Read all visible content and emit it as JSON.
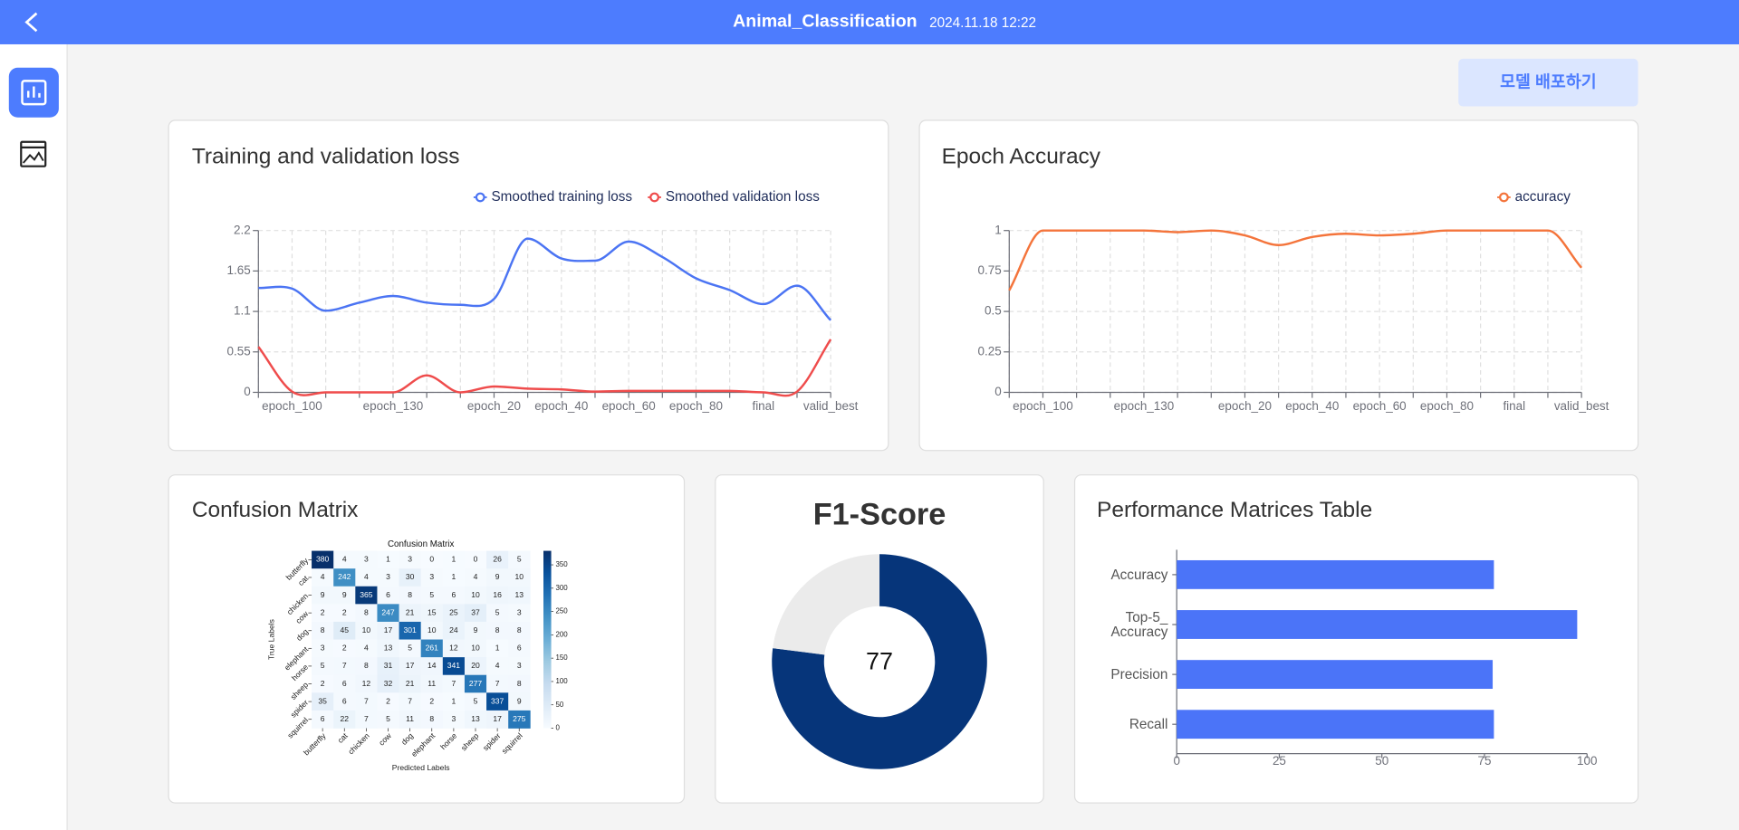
{
  "header": {
    "title": "Animal_Classification",
    "datetime": "2024.11.18 12:22"
  },
  "deploy_button": "모델 배포하기",
  "chart_data": [
    {
      "type": "line",
      "title": "Training and validation loss",
      "categories": [
        null,
        "epoch_100",
        null,
        null,
        "epoch_130",
        null,
        null,
        "epoch_20",
        null,
        "epoch_40",
        null,
        "epoch_60",
        null,
        "epoch_80",
        null,
        "final",
        null,
        "valid_best"
      ],
      "series": [
        {
          "name": "Smoothed training loss",
          "color": "#4b74f3",
          "values": [
            1.42,
            1.41,
            1.11,
            1.22,
            1.31,
            1.22,
            1.19,
            1.27,
            2.09,
            1.82,
            1.79,
            2.05,
            1.84,
            1.55,
            1.39,
            1.2,
            1.45,
            0.98
          ]
        },
        {
          "name": "Smoothed validation loss",
          "color": "#ef4c4c",
          "values": [
            0.62,
            0.01,
            0,
            0,
            0,
            0.23,
            0,
            0.08,
            0.05,
            0.04,
            0.01,
            0.02,
            0.02,
            0.02,
            0.02,
            0,
            0.01,
            0.72
          ]
        }
      ],
      "ylim": [
        0,
        2.2
      ],
      "yticks": [
        0,
        0.55,
        1.1,
        1.65,
        2.2
      ],
      "grid": true,
      "legend": "top-right"
    },
    {
      "type": "line",
      "title": "Epoch Accuracy",
      "categories": [
        null,
        "epoch_100",
        null,
        null,
        "epoch_130",
        null,
        null,
        "epoch_20",
        null,
        "epoch_40",
        null,
        "epoch_60",
        null,
        "epoch_80",
        null,
        "final",
        null,
        "valid_best"
      ],
      "series": [
        {
          "name": "accuracy",
          "color": "#f4743b",
          "values": [
            0.63,
            1,
            1,
            1,
            1,
            0.99,
            1,
            0.97,
            0.91,
            0.96,
            0.98,
            0.97,
            0.98,
            1,
            1,
            1,
            1,
            0.77
          ]
        }
      ],
      "ylim": [
        0,
        1
      ],
      "yticks": [
        0,
        0.25,
        0.5,
        0.75,
        1
      ],
      "grid": true,
      "legend": "top-right"
    },
    {
      "type": "heatmap",
      "title": "Confusion Matrix",
      "plot_title": "Confusion Matrix",
      "xlabel": "Predicted Labels",
      "ylabel": "True Labels",
      "x_categories": [
        "butterfly",
        "cat",
        "chicken",
        "cow",
        "dog",
        "elephant",
        "horse",
        "sheep",
        "spider",
        "squirrel"
      ],
      "y_categories": [
        "butterfly",
        "cat",
        "chicken",
        "cow",
        "dog",
        "elephant",
        "horse",
        "sheep",
        "spider",
        "squirrel"
      ],
      "values": [
        [
          380,
          4,
          3,
          1,
          3,
          0,
          1,
          0,
          26,
          5
        ],
        [
          4,
          242,
          4,
          3,
          30,
          3,
          1,
          4,
          9,
          10
        ],
        [
          9,
          9,
          365,
          6,
          8,
          5,
          6,
          10,
          16,
          13
        ],
        [
          2,
          2,
          8,
          247,
          21,
          15,
          25,
          37,
          5,
          3
        ],
        [
          8,
          45,
          10,
          17,
          301,
          10,
          24,
          9,
          8,
          8
        ],
        [
          3,
          2,
          4,
          13,
          5,
          261,
          12,
          10,
          1,
          6
        ],
        [
          5,
          7,
          8,
          31,
          17,
          14,
          341,
          20,
          4,
          3
        ],
        [
          2,
          6,
          12,
          32,
          21,
          11,
          7,
          277,
          7,
          8
        ],
        [
          35,
          6,
          7,
          2,
          7,
          2,
          1,
          5,
          337,
          9
        ],
        [
          6,
          22,
          7,
          5,
          11,
          8,
          3,
          13,
          17,
          275
        ]
      ],
      "clim": [
        0,
        380
      ],
      "colorbar_ticks": [
        0,
        50,
        100,
        150,
        200,
        250,
        300,
        350
      ],
      "colormap": [
        "#f7fbff",
        "#deebf7",
        "#c6dbef",
        "#9ecae1",
        "#6baed6",
        "#4292c6",
        "#2171b5",
        "#08519c",
        "#08306b"
      ]
    },
    {
      "type": "donut",
      "title": "F1-Score",
      "value": 77,
      "range": [
        0,
        100
      ],
      "color": "#06357a",
      "rest_color": "#ebebeb"
    },
    {
      "type": "bar",
      "orientation": "horizontal",
      "title": "Performance Matrices Table",
      "categories": [
        "Accuracy",
        "Top-5_\nAccuracy",
        "Precision",
        "Recall"
      ],
      "values": [
        77.3,
        97.6,
        77.0,
        77.3
      ],
      "color": "#4b74f8",
      "xlim": [
        0,
        100
      ],
      "xticks": [
        0,
        25,
        50,
        75,
        100
      ]
    }
  ]
}
